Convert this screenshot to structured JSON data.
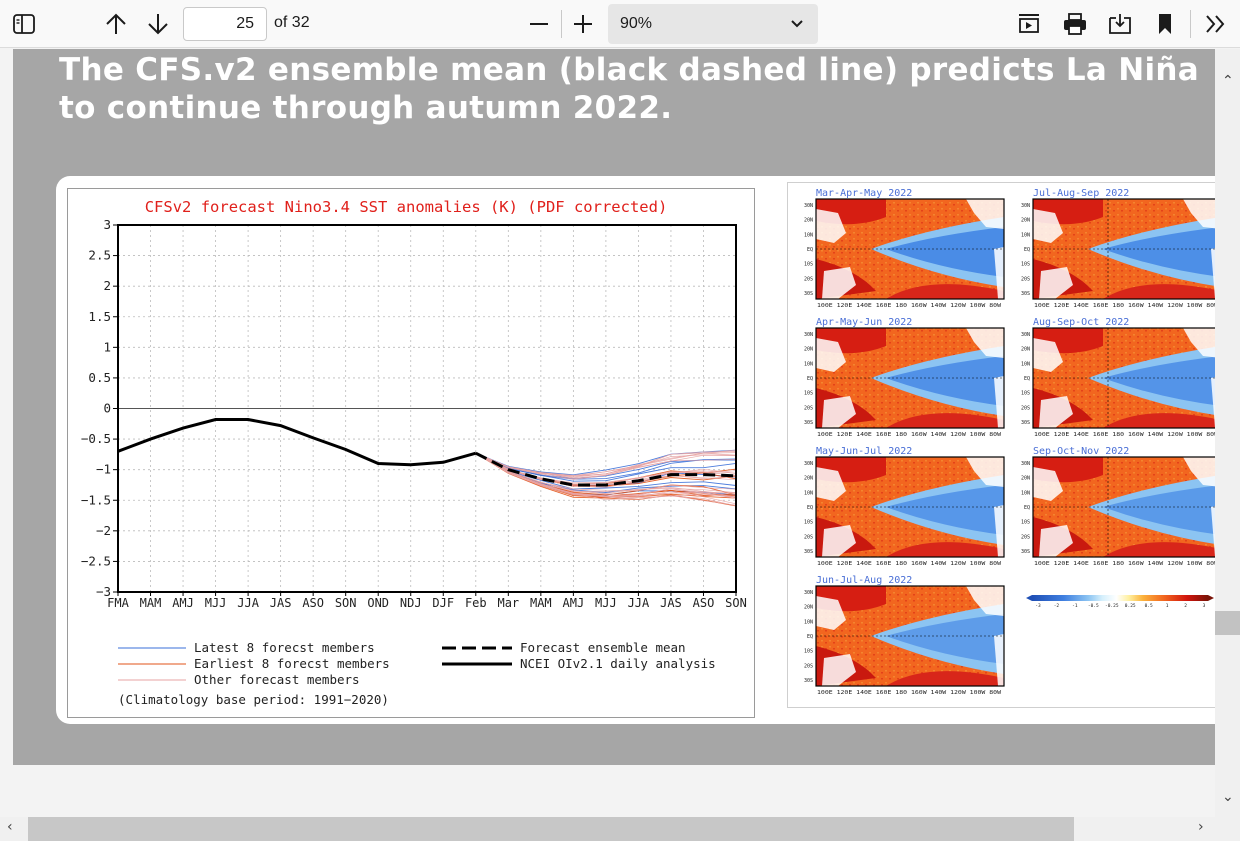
{
  "toolbar": {
    "page_number": "25",
    "page_count": "of 32",
    "zoom": "90%",
    "icons": [
      "sidebar-icon",
      "arrow-up-icon",
      "arrow-down-icon",
      "zoom-out-icon",
      "zoom-in-icon",
      "read-aloud-icon",
      "print-icon",
      "save-icon",
      "bookmark-icon",
      "more-icon"
    ]
  },
  "slide": {
    "title": "The CFS.v2 ensemble mean (black dashed line) predicts La Niña to continue through autumn 2022."
  },
  "chart_data": {
    "type": "line",
    "title": "CFSv2 forecast Nino3.4 SST anomalies (K) (PDF corrected)",
    "categories": [
      "FMA",
      "MAM",
      "AMJ",
      "MJJ",
      "JJA",
      "JAS",
      "ASO",
      "SON",
      "OND",
      "NDJ",
      "DJF",
      "Feb",
      "Mar",
      "MAM",
      "AMJ",
      "MJJ",
      "JJA",
      "JAS",
      "ASO",
      "SON"
    ],
    "y_ticks": [
      "3",
      "2.5",
      "2",
      "1.5",
      "1",
      "0.5",
      "0",
      "−0.5",
      "−1",
      "−1.5",
      "−2",
      "−2.5",
      "−3"
    ],
    "ylim": [
      -3,
      3
    ],
    "grid": true,
    "series": [
      {
        "name": "NCEI OIv2.1 daily analysis",
        "x": [
          0,
          1,
          2,
          3,
          4,
          5,
          6,
          7,
          8,
          9,
          10,
          11
        ],
        "values": [
          -0.7,
          -0.5,
          -0.32,
          -0.18,
          -0.18,
          -0.28,
          -0.48,
          -0.67,
          -0.9,
          -0.92,
          -0.88,
          -0.73
        ]
      },
      {
        "name": "Forecast ensemble mean",
        "x": [
          11,
          12,
          13,
          14,
          15,
          16,
          17,
          18,
          19
        ],
        "values": [
          -0.73,
          -1.0,
          -1.15,
          -1.25,
          -1.25,
          -1.18,
          -1.08,
          -1.08,
          -1.1
        ]
      }
    ],
    "legend": [
      {
        "label": "Latest 8 forecst members",
        "color": "#3a6fd8"
      },
      {
        "label": "Earliest 8 forecst members",
        "color": "#e2531a"
      },
      {
        "label": "Other forecast members",
        "color": "#e7a3a3"
      },
      {
        "label": "Forecast ensemble mean",
        "color": "#000000"
      },
      {
        "label": "NCEI OIv2.1 daily analysis",
        "color": "#000000"
      }
    ],
    "footnote": "(Climatology base period: 1991−2020)"
  },
  "maps": {
    "panels": [
      {
        "title": "Mar-Apr-May 2022"
      },
      {
        "title": "Jul-Aug-Sep 2022"
      },
      {
        "title": "Apr-May-Jun 2022"
      },
      {
        "title": "Aug-Sep-Oct 2022"
      },
      {
        "title": "May-Jun-Jul 2022"
      },
      {
        "title": "Sep-Oct-Nov 2022"
      },
      {
        "title": "Jun-Jul-Aug 2022"
      }
    ],
    "lat_labels": [
      "30N",
      "20N",
      "10N",
      "EQ",
      "10S",
      "20S",
      "30S"
    ],
    "lon_labels": "100E 120E 140E 160E 180 160W 140W 120W 100W 80W",
    "colorbar_labels": [
      "-3",
      "-2",
      "-1",
      "-0.5",
      "-0.25",
      "0.25",
      "0.5",
      "1",
      "2",
      "3"
    ]
  }
}
